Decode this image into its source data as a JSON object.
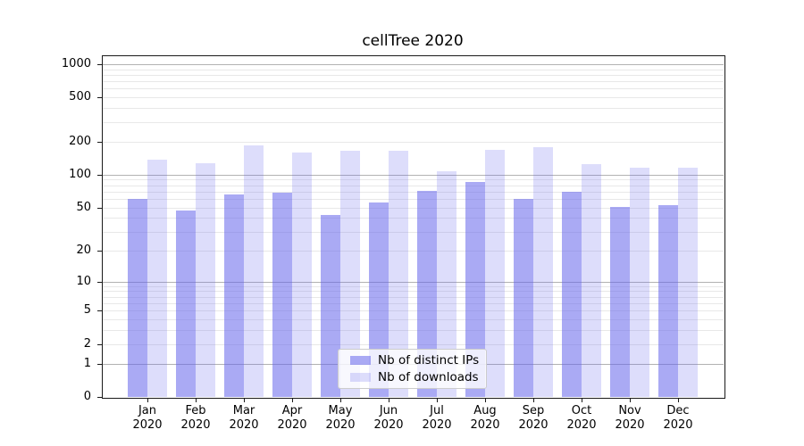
{
  "chart_data": {
    "type": "bar",
    "title": "cellTree 2020",
    "categories": [
      "Jan",
      "Feb",
      "Mar",
      "Apr",
      "May",
      "Jun",
      "Jul",
      "Aug",
      "Sep",
      "Oct",
      "Nov",
      "Dec"
    ],
    "category_year": "2020",
    "series": [
      {
        "name": "Nb of distinct IPs",
        "color": "rgba(100,100,235,0.55)",
        "values": [
          60,
          47,
          66,
          69,
          43,
          56,
          71,
          85,
          60,
          70,
          51,
          53
        ]
      },
      {
        "name": "Nb of downloads",
        "color": "rgba(100,100,235,0.22)",
        "values": [
          136,
          126,
          185,
          159,
          164,
          166,
          107,
          168,
          178,
          125,
          115,
          116
        ]
      }
    ],
    "yscale": "log10(value+1)",
    "yticks": [
      0,
      1,
      2,
      5,
      10,
      20,
      50,
      100,
      200,
      500,
      1000
    ],
    "ylim": [
      0,
      1200
    ],
    "grid": "both",
    "grid_major_color": "#b2b2b2",
    "grid_minor_color": "#e8e8e8",
    "legend_position": "lower center"
  }
}
